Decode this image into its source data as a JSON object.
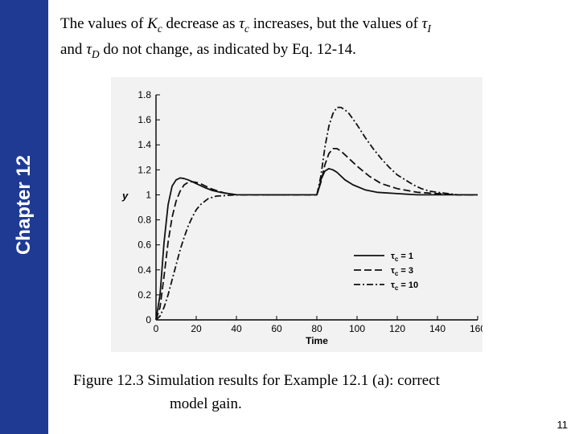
{
  "slide": {
    "chapter": "Chapter 12",
    "page_number": "11",
    "text": {
      "t1": "The values of ",
      "kc_k": "K",
      "kc_sub": "c",
      "t2": " decrease as ",
      "tauc_sub": "c",
      "t3": " increases, but the values of ",
      "taui_sub": "I",
      "t4": "and ",
      "taud_sub": "D",
      "t5": " do not change, as indicated by Eq. 12-14."
    },
    "caption": {
      "line1": "Figure 12.3 Simulation results for Example 12.1 (a): correct",
      "line2": "model gain."
    }
  },
  "chart_data": {
    "type": "line",
    "xlabel": "Time",
    "ylabel": "y",
    "xlim": [
      0,
      160
    ],
    "ylim": [
      0,
      1.8
    ],
    "xticks": [
      "0",
      "20",
      "40",
      "60",
      "80",
      "100",
      "120",
      "140",
      "160"
    ],
    "yticks": [
      "0",
      "0.2",
      "0.4",
      "0.6",
      "0.8",
      "1",
      "1.2",
      "1.4",
      "1.6",
      "1.8"
    ],
    "legend_position": "lower-right",
    "legend_prefix": "τ",
    "series": [
      {
        "name": "τc = 1",
        "sub": "c",
        "value": "1",
        "style": "solid",
        "x": [
          0,
          2,
          4,
          6,
          8,
          10,
          12,
          14,
          16,
          18,
          20,
          24,
          28,
          32,
          40,
          50,
          60,
          70,
          78,
          80,
          81,
          82,
          84,
          86,
          88,
          90,
          94,
          98,
          104,
          110,
          120,
          130,
          140,
          160
        ],
        "y": [
          0,
          0.2,
          0.62,
          0.92,
          1.07,
          1.12,
          1.135,
          1.13,
          1.12,
          1.105,
          1.09,
          1.06,
          1.035,
          1.02,
          1.0,
          1.0,
          1.0,
          1.0,
          1.0,
          1.0,
          1.05,
          1.12,
          1.19,
          1.21,
          1.2,
          1.18,
          1.12,
          1.08,
          1.04,
          1.02,
          1.01,
          1.0,
          1.0,
          1.0
        ]
      },
      {
        "name": "τc = 3",
        "sub": "c",
        "value": "3",
        "style": "dashed",
        "x": [
          0,
          2,
          4,
          6,
          8,
          10,
          12,
          14,
          16,
          18,
          20,
          22,
          24,
          28,
          34,
          40,
          50,
          60,
          70,
          78,
          80,
          82,
          84,
          86,
          88,
          90,
          92,
          96,
          100,
          106,
          112,
          120,
          130,
          140,
          150,
          160
        ],
        "y": [
          0,
          0.1,
          0.35,
          0.62,
          0.82,
          0.95,
          1.03,
          1.08,
          1.1,
          1.105,
          1.1,
          1.09,
          1.075,
          1.045,
          1.015,
          1.0,
          1.0,
          1.0,
          1.0,
          1.0,
          1.0,
          1.1,
          1.24,
          1.33,
          1.37,
          1.37,
          1.35,
          1.29,
          1.23,
          1.15,
          1.09,
          1.05,
          1.02,
          1.01,
          1.0,
          1.0
        ]
      },
      {
        "name": "τc = 10",
        "sub": "c",
        "value": "10",
        "style": "dash-dot",
        "x": [
          0,
          2,
          4,
          6,
          8,
          10,
          12,
          14,
          16,
          18,
          20,
          22,
          26,
          30,
          40,
          50,
          60,
          70,
          78,
          80,
          82,
          84,
          86,
          88,
          90,
          92,
          94,
          96,
          100,
          104,
          108,
          112,
          116,
          120,
          124,
          128,
          132,
          136,
          140,
          150,
          160
        ],
        "y": [
          0,
          0.03,
          0.1,
          0.2,
          0.32,
          0.44,
          0.56,
          0.66,
          0.75,
          0.82,
          0.88,
          0.92,
          0.97,
          0.99,
          1.0,
          1.0,
          1.0,
          1.0,
          1.0,
          1.0,
          1.15,
          1.38,
          1.55,
          1.65,
          1.7,
          1.7,
          1.68,
          1.65,
          1.56,
          1.46,
          1.37,
          1.29,
          1.22,
          1.16,
          1.12,
          1.08,
          1.05,
          1.03,
          1.02,
          1.0,
          1.0
        ]
      }
    ]
  },
  "colors": {
    "sidebar": "#1f3a93",
    "chart_background": "#f2f2f2",
    "text": "#000000"
  }
}
